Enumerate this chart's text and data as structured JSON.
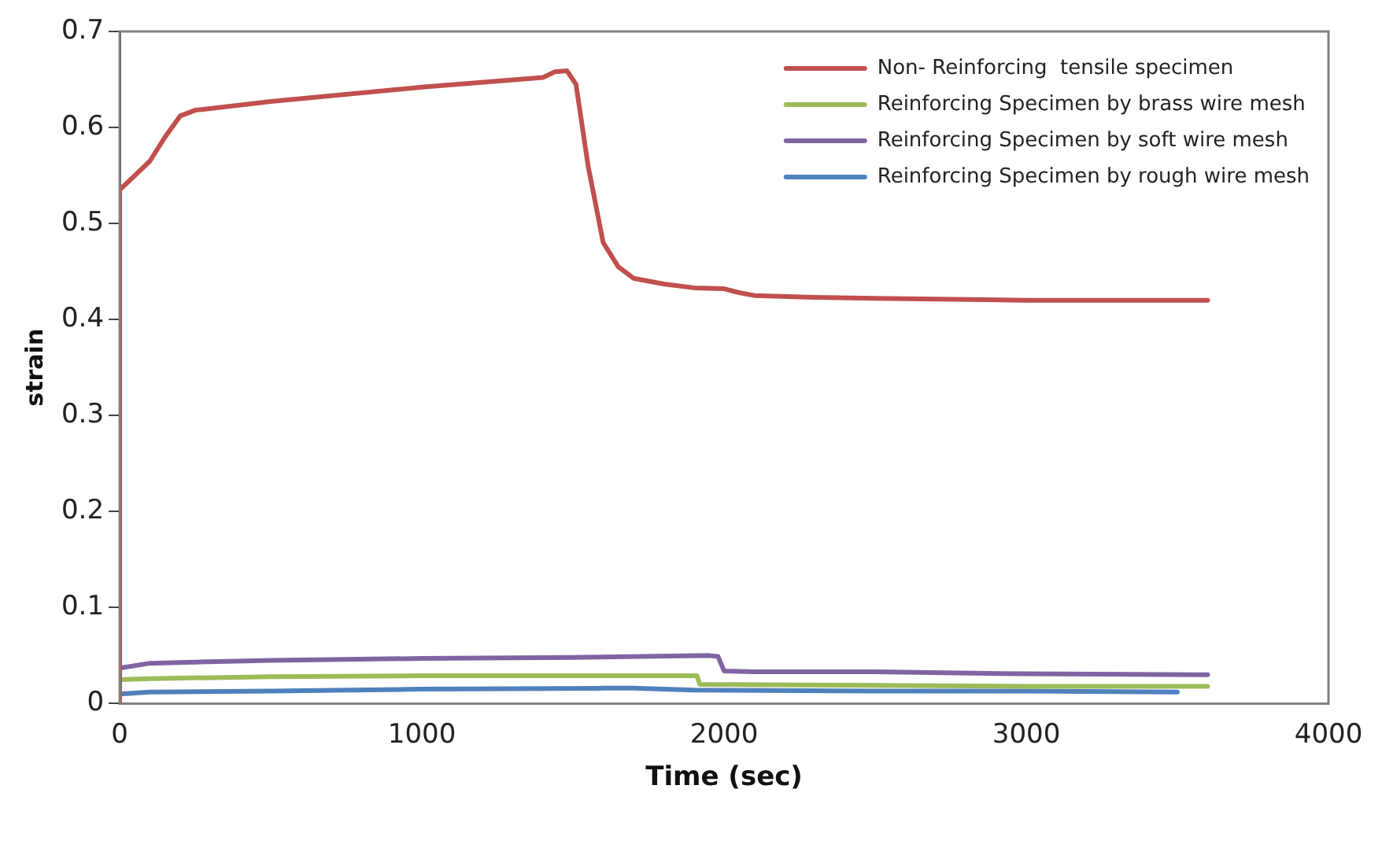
{
  "chart_data": {
    "type": "line",
    "xlabel": "Time (sec)",
    "ylabel": "strain",
    "xlim": [
      0,
      4000
    ],
    "xticks": [
      0,
      1000,
      2000,
      3000,
      4000
    ],
    "ylim": [
      0,
      0.7
    ],
    "yticks": [
      0,
      0.1,
      0.2,
      0.3,
      0.4,
      0.5,
      0.6,
      0.7
    ],
    "grid": false,
    "legend": "top right",
    "marker": "none",
    "line_style": "solid",
    "series": [
      {
        "name": "Non- Reinforcing  tensile specimen",
        "color": "#c0504d",
        "x": [
          0,
          0,
          50,
          100,
          150,
          200,
          250,
          500,
          1000,
          1400,
          1440,
          1480,
          1510,
          1550,
          1600,
          1650,
          1700,
          1800,
          1900,
          2000,
          2050,
          2100,
          2300,
          2500,
          3000,
          3600
        ],
        "values": [
          0,
          0.535,
          0.55,
          0.565,
          0.59,
          0.612,
          0.618,
          0.627,
          0.642,
          0.652,
          0.658,
          0.659,
          0.645,
          0.56,
          0.48,
          0.455,
          0.443,
          0.437,
          0.433,
          0.432,
          0.428,
          0.425,
          0.423,
          0.422,
          0.42,
          0.42
        ]
      },
      {
        "name": "Reinforcing Specimen by brass wire mesh",
        "color": "#9bbb59",
        "x": [
          0,
          100,
          500,
          1000,
          1910,
          1920,
          2500,
          3000,
          3600
        ],
        "values": [
          0.025,
          0.026,
          0.028,
          0.029,
          0.029,
          0.02,
          0.019,
          0.018,
          0.018
        ]
      },
      {
        "name": "Reinforcing Specimen by soft wire mesh",
        "color": "#8064a2",
        "x": [
          0,
          100,
          500,
          1000,
          1500,
          1950,
          1980,
          2000,
          2100,
          2500,
          3000,
          3600
        ],
        "values": [
          0.037,
          0.042,
          0.045,
          0.047,
          0.048,
          0.05,
          0.049,
          0.034,
          0.033,
          0.033,
          0.031,
          0.03
        ]
      },
      {
        "name": "Reinforcing Specimen by rough wire mesh",
        "color": "#4f81bd",
        "x": [
          0,
          100,
          500,
          1000,
          1600,
          1700,
          1900,
          2500,
          3000,
          3500
        ],
        "values": [
          0.01,
          0.012,
          0.013,
          0.015,
          0.016,
          0.016,
          0.014,
          0.013,
          0.013,
          0.012
        ]
      }
    ]
  }
}
